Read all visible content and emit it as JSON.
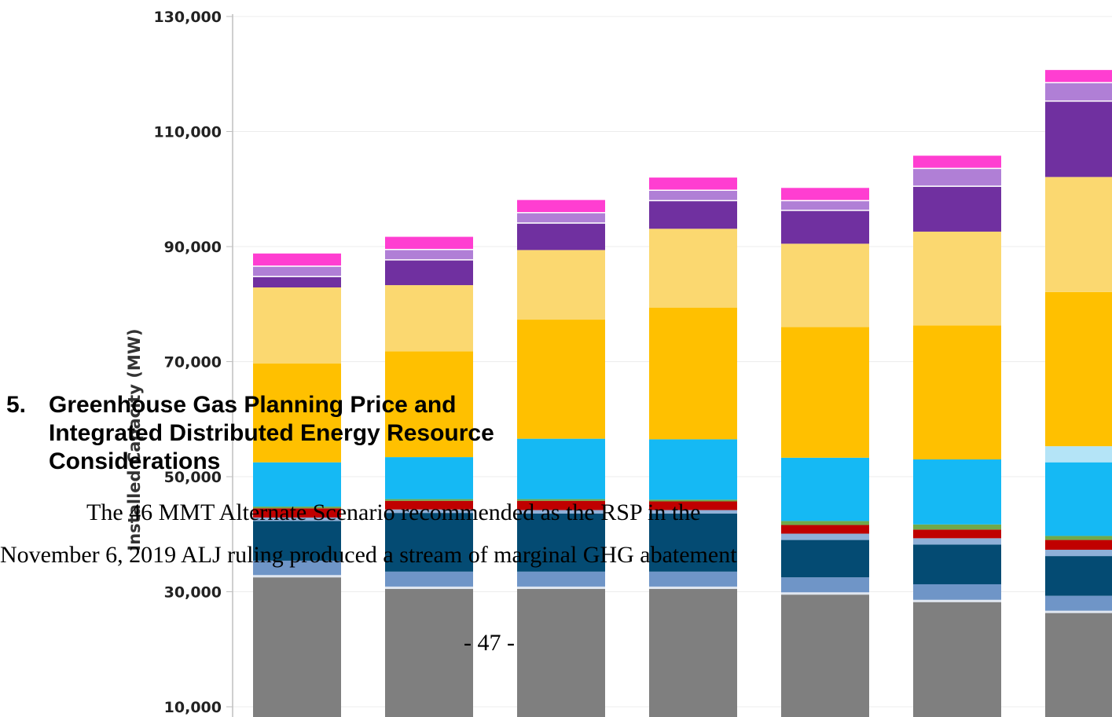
{
  "chart_data": {
    "type": "bar",
    "stacked": true,
    "ylabel": "Installed Capacity (MW)",
    "y_ticks": [
      "10,000",
      "30,000",
      "50,000",
      "70,000",
      "90,000",
      "110,000",
      "130,000"
    ],
    "ylim": [
      10000,
      130000
    ],
    "grid": true,
    "series": [
      {
        "color": "#7f7f7f",
        "values": [
          32500,
          30500,
          30500,
          30500,
          29500,
          28200,
          26300
        ]
      },
      {
        "color": "#dfe6f0",
        "values": [
          400,
          400,
          400,
          400,
          400,
          400,
          400
        ]
      },
      {
        "color": "#6f95c7",
        "values": [
          2500,
          2600,
          2600,
          2600,
          2600,
          2700,
          2600
        ]
      },
      {
        "color": "#044b73",
        "values": [
          6900,
          10200,
          10100,
          10100,
          6500,
          6900,
          6900
        ]
      },
      {
        "color": "#8fb0d8",
        "values": [
          600,
          600,
          600,
          600,
          1100,
          1100,
          1100
        ]
      },
      {
        "color": "#c00000",
        "values": [
          1600,
          1500,
          1600,
          1500,
          1500,
          1500,
          1700
        ]
      },
      {
        "color": "#70a94a",
        "values": [
          300,
          300,
          300,
          300,
          700,
          900,
          700
        ]
      },
      {
        "color": "#15b9f4",
        "values": [
          7700,
          7300,
          10500,
          10500,
          11000,
          11300,
          12800
        ]
      },
      {
        "color": "#b4e4f7",
        "values": [
          0,
          0,
          0,
          0,
          0,
          0,
          2800
        ]
      },
      {
        "color": "#ffc000",
        "values": [
          17200,
          18400,
          20700,
          22900,
          22700,
          23300,
          26800
        ]
      },
      {
        "color": "#fbd870",
        "values": [
          13200,
          11500,
          12100,
          13700,
          14500,
          16300,
          20000
        ]
      },
      {
        "color": "#7030a0",
        "values": [
          1800,
          4300,
          4600,
          4800,
          5700,
          7800,
          13100
        ]
      },
      {
        "color": "#ffffff",
        "values": [
          200,
          200,
          200,
          200,
          200,
          200,
          200
        ]
      },
      {
        "color": "#b07fd6",
        "values": [
          1600,
          1600,
          1600,
          1600,
          1500,
          2900,
          3000
        ]
      },
      {
        "color": "#ffffff",
        "values": [
          200,
          200,
          200,
          200,
          200,
          200,
          200
        ]
      },
      {
        "color": "#ff3ed1",
        "values": [
          2100,
          2100,
          2100,
          2100,
          2100,
          2100,
          2100
        ]
      }
    ]
  },
  "document": {
    "heading_number": "5.",
    "heading_text": "Greenhouse Gas Planning Price and Integrated Distributed Energy Resource Considerations",
    "paragraph_line_1": "The 46 MMT Alternate Scenario recommended as the RSP in the",
    "paragraph_line_2": "November 6, 2019 ALJ ruling produced a stream of marginal GHG abatement",
    "page_number": "- 47 -"
  }
}
